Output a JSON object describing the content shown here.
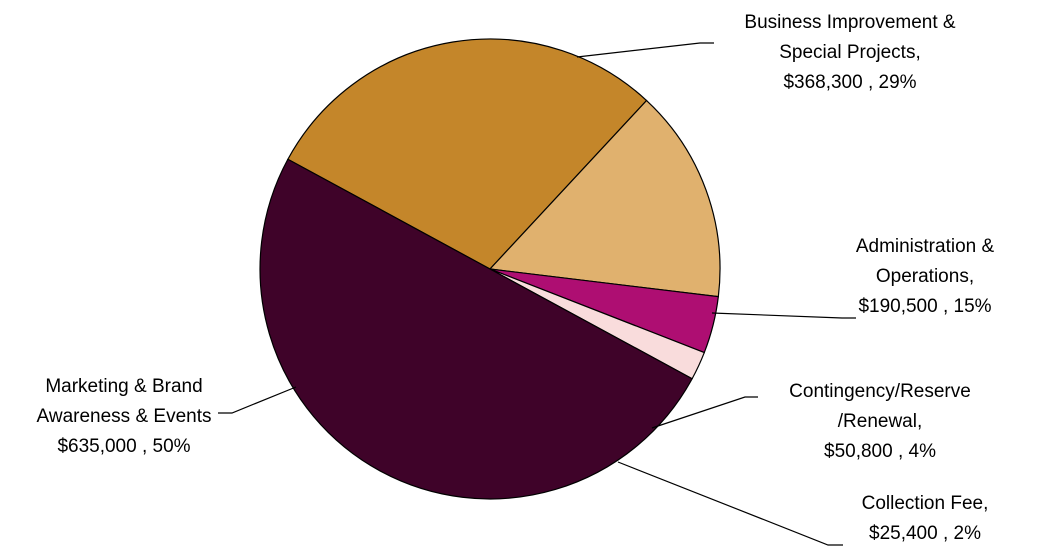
{
  "chart_data": {
    "type": "pie",
    "slices": [
      {
        "label_lines": [
          "Business Improvement &",
          "Special Projects,",
          "$368,300 , 29%"
        ],
        "category": "Business Improvement & Special Projects",
        "value": 368300,
        "percent": 29,
        "color": "#C4862A"
      },
      {
        "label_lines": [
          "Administration &",
          "Operations,",
          "$190,500 , 15%"
        ],
        "category": "Administration & Operations",
        "value": 190500,
        "percent": 15,
        "color": "#E0B16E"
      },
      {
        "label_lines": [
          "Contingency/Reserve",
          "/Renewal,",
          "$50,800 , 4%"
        ],
        "category": "Contingency/Reserve/Renewal",
        "value": 50800,
        "percent": 4,
        "color": "#AE0E72"
      },
      {
        "label_lines": [
          "Collection Fee,",
          "$25,400 , 2%"
        ],
        "category": "Collection Fee",
        "value": 25400,
        "percent": 2,
        "color": "#F9DCDC"
      },
      {
        "label_lines": [
          "Marketing & Brand",
          "Awareness & Events",
          "$635,000 , 50%"
        ],
        "category": "Marketing & Brand Awareness & Events",
        "value": 635000,
        "percent": 50,
        "color": "#3F0329"
      }
    ]
  }
}
